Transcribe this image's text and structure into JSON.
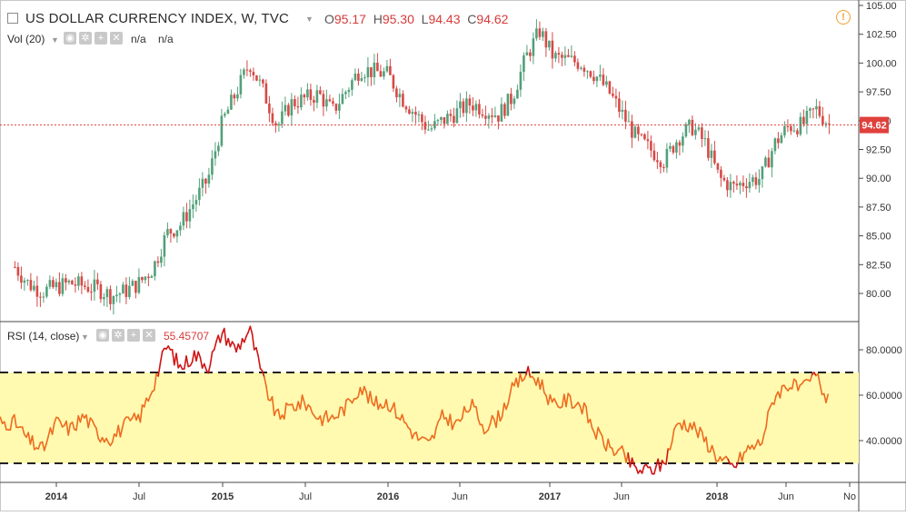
{
  "header": {
    "title": "US DOLLAR CURRENCY INDEX, W, TVC",
    "open_label": "O",
    "open": "95.17",
    "high_label": "H",
    "high": "95.30",
    "low_label": "L",
    "low": "94.43",
    "close_label": "C",
    "close": "94.62",
    "warning_icon": "exclamation-circle-icon"
  },
  "volume_indicator": {
    "label": "Vol (20)",
    "value1": "n/a",
    "value2": "n/a"
  },
  "rsi_indicator": {
    "label": "RSI (14, close)",
    "value": "55.45707"
  },
  "colors": {
    "up": "#53a07a",
    "down": "#d64a46",
    "rsi_line": "#ee6b1f",
    "rsi_over": "#d01414",
    "band": "#fffab0",
    "last_price_tag": "#e0403c"
  },
  "chart_data": [
    {
      "type": "candlestick",
      "title": "US DOLLAR CURRENCY INDEX, W, TVC",
      "x_tick_labels": [
        "2014",
        "Jul",
        "2015",
        "Jul",
        "2016",
        "Jun",
        "2017",
        "Jun",
        "2018",
        "Jun",
        "No"
      ],
      "y_tick_labels": [
        "80.00",
        "82.50",
        "85.00",
        "87.50",
        "90.00",
        "92.50",
        "95.00",
        "97.50",
        "100.00",
        "102.50",
        "105.00"
      ],
      "ylim": [
        77.5,
        105.0
      ],
      "last_price": "94.62",
      "close_path": [
        {
          "x": "2013-10",
          "y": 82.3
        },
        {
          "x": "2013-11",
          "y": 80.8
        },
        {
          "x": "2013-12",
          "y": 80.2
        },
        {
          "x": "2014-02",
          "y": 80.9
        },
        {
          "x": "2014-04",
          "y": 80.4
        },
        {
          "x": "2014-05",
          "y": 79.8
        },
        {
          "x": "2014-06",
          "y": 80.2
        },
        {
          "x": "2014-07",
          "y": 80.9
        },
        {
          "x": "2014-08",
          "y": 82.2
        },
        {
          "x": "2014-09",
          "y": 85.2
        },
        {
          "x": "2014-10",
          "y": 86.0
        },
        {
          "x": "2014-11",
          "y": 88.0
        },
        {
          "x": "2014-12",
          "y": 90.0
        },
        {
          "x": "2015-01",
          "y": 94.8
        },
        {
          "x": "2015-03",
          "y": 100.0
        },
        {
          "x": "2015-04",
          "y": 97.5
        },
        {
          "x": "2015-05",
          "y": 94.5
        },
        {
          "x": "2015-06",
          "y": 96.5
        },
        {
          "x": "2015-08",
          "y": 97.3
        },
        {
          "x": "2015-09",
          "y": 95.8
        },
        {
          "x": "2015-11",
          "y": 99.5
        },
        {
          "x": "2016-01",
          "y": 99.0
        },
        {
          "x": "2016-02",
          "y": 97.0
        },
        {
          "x": "2016-04",
          "y": 94.2
        },
        {
          "x": "2016-05",
          "y": 95.0
        },
        {
          "x": "2016-07",
          "y": 96.5
        },
        {
          "x": "2016-09",
          "y": 95.5
        },
        {
          "x": "2016-10",
          "y": 97.0
        },
        {
          "x": "2016-11",
          "y": 100.5
        },
        {
          "x": "2016-12",
          "y": 102.8
        },
        {
          "x": "2017-01",
          "y": 100.5
        },
        {
          "x": "2017-03",
          "y": 100.0
        },
        {
          "x": "2017-04",
          "y": 99.0
        },
        {
          "x": "2017-05",
          "y": 97.5
        },
        {
          "x": "2017-07",
          "y": 93.5
        },
        {
          "x": "2017-09",
          "y": 91.5
        },
        {
          "x": "2017-10",
          "y": 93.5
        },
        {
          "x": "2017-11",
          "y": 94.5
        },
        {
          "x": "2017-12",
          "y": 93.0
        },
        {
          "x": "2018-01",
          "y": 90.0
        },
        {
          "x": "2018-02",
          "y": 89.2
        },
        {
          "x": "2018-03",
          "y": 89.8
        },
        {
          "x": "2018-04",
          "y": 90.0
        },
        {
          "x": "2018-05",
          "y": 93.0
        },
        {
          "x": "2018-06",
          "y": 94.5
        },
        {
          "x": "2018-07",
          "y": 94.6
        },
        {
          "x": "2018-08",
          "y": 96.0
        },
        {
          "x": "2018-09",
          "y": 94.6
        }
      ]
    },
    {
      "type": "line",
      "title": "RSI (14, close)",
      "y_tick_labels": [
        "40.0000",
        "60.0000",
        "80.0000"
      ],
      "ylim": [
        17,
        91
      ],
      "overbought": 70,
      "oversold": 30,
      "values": [
        {
          "x": "2013-10",
          "y": 48
        },
        {
          "x": "2013-11",
          "y": 40
        },
        {
          "x": "2013-12",
          "y": 36
        },
        {
          "x": "2014-01",
          "y": 48
        },
        {
          "x": "2014-02",
          "y": 45
        },
        {
          "x": "2014-03",
          "y": 51
        },
        {
          "x": "2014-04",
          "y": 43
        },
        {
          "x": "2014-05",
          "y": 41
        },
        {
          "x": "2014-06",
          "y": 47
        },
        {
          "x": "2014-07",
          "y": 50
        },
        {
          "x": "2014-08",
          "y": 64
        },
        {
          "x": "2014-09",
          "y": 82
        },
        {
          "x": "2014-10",
          "y": 72
        },
        {
          "x": "2014-11",
          "y": 78
        },
        {
          "x": "2014-12",
          "y": 73
        },
        {
          "x": "2015-01",
          "y": 88
        },
        {
          "x": "2015-02",
          "y": 80
        },
        {
          "x": "2015-03",
          "y": 89
        },
        {
          "x": "2015-04",
          "y": 66
        },
        {
          "x": "2015-05",
          "y": 50
        },
        {
          "x": "2015-06",
          "y": 55
        },
        {
          "x": "2015-07",
          "y": 57
        },
        {
          "x": "2015-08",
          "y": 50
        },
        {
          "x": "2015-09",
          "y": 50
        },
        {
          "x": "2015-10",
          "y": 55
        },
        {
          "x": "2015-11",
          "y": 64
        },
        {
          "x": "2015-12",
          "y": 56
        },
        {
          "x": "2016-01",
          "y": 57
        },
        {
          "x": "2016-02",
          "y": 50
        },
        {
          "x": "2016-03",
          "y": 42
        },
        {
          "x": "2016-04",
          "y": 38
        },
        {
          "x": "2016-05",
          "y": 51
        },
        {
          "x": "2016-06",
          "y": 47
        },
        {
          "x": "2016-07",
          "y": 56
        },
        {
          "x": "2016-08",
          "y": 46
        },
        {
          "x": "2016-09",
          "y": 50
        },
        {
          "x": "2016-10",
          "y": 62
        },
        {
          "x": "2016-11",
          "y": 70
        },
        {
          "x": "2016-12",
          "y": 66
        },
        {
          "x": "2017-01",
          "y": 55
        },
        {
          "x": "2017-02",
          "y": 58
        },
        {
          "x": "2017-03",
          "y": 56
        },
        {
          "x": "2017-04",
          "y": 44
        },
        {
          "x": "2017-05",
          "y": 37
        },
        {
          "x": "2017-06",
          "y": 34
        },
        {
          "x": "2017-07",
          "y": 27
        },
        {
          "x": "2017-08",
          "y": 27
        },
        {
          "x": "2017-09",
          "y": 30
        },
        {
          "x": "2017-10",
          "y": 48
        },
        {
          "x": "2017-11",
          "y": 47
        },
        {
          "x": "2017-12",
          "y": 40
        },
        {
          "x": "2018-01",
          "y": 32
        },
        {
          "x": "2018-02",
          "y": 28
        },
        {
          "x": "2018-03",
          "y": 36
        },
        {
          "x": "2018-04",
          "y": 39
        },
        {
          "x": "2018-05",
          "y": 60
        },
        {
          "x": "2018-06",
          "y": 65
        },
        {
          "x": "2018-07",
          "y": 62
        },
        {
          "x": "2018-08",
          "y": 69
        },
        {
          "x": "2018-09",
          "y": 55
        }
      ]
    }
  ]
}
